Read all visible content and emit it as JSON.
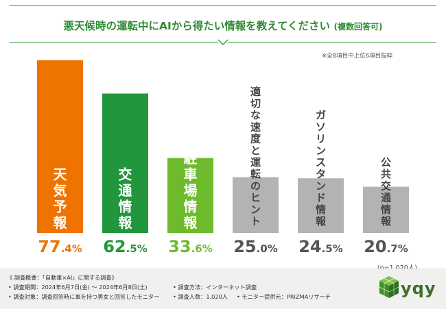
{
  "title": {
    "main": "悪天候時の運転中にAIから得たい情報を教えてください",
    "sub": "(複数回答可)"
  },
  "note": "※全8項目中上位6項目抜粋",
  "n_label": "(n=1,020人)",
  "colors": {
    "orange": "#ee7300",
    "dark_green": "#22963c",
    "light_green": "#6dbb2d",
    "gray": "#b3b3b3",
    "accent_green": "#2e8b32"
  },
  "chart_data": {
    "type": "bar",
    "title": "悪天候時の運転中にAIから得たい情報を教えてください (複数回答可)",
    "categories": [
      "天気予報",
      "交通情報",
      "駐車場情報",
      "適切な速度と運転のヒント",
      "ガソリンスタンド情報",
      "公共交通情報"
    ],
    "values": [
      77.4,
      62.5,
      33.6,
      25.0,
      24.5,
      20.7
    ],
    "value_labels": [
      {
        "int": "77",
        "dec": ".4%"
      },
      {
        "int": "62",
        "dec": ".5%"
      },
      {
        "int": "33",
        "dec": ".6%"
      },
      {
        "int": "25",
        "dec": ".0%"
      },
      {
        "int": "24",
        "dec": ".5%"
      },
      {
        "int": "20",
        "dec": ".7%"
      }
    ],
    "bar_colors": [
      "#ee7300",
      "#22963c",
      "#6dbb2d",
      "#b3b3b3",
      "#b3b3b3",
      "#b3b3b3"
    ],
    "label_inside": [
      true,
      true,
      true,
      false,
      false,
      false
    ],
    "ylim": [
      0,
      100
    ],
    "unit": "%",
    "xlabel": "",
    "ylabel": ""
  },
  "footer": {
    "summary": "《 調査概要：「自動車×AI」に関する調査》",
    "period": "• 調査期間：2024年6月7日(金) ～ 2024年6月8日(土)",
    "target": "• 調査対象：調査回答時に車を持つ男女と回答したモニター",
    "method": "• 調査方法：インターネット調査",
    "count": "• 調査人数：1,020人",
    "provider": "• モニター提供元：PRIZMAリサーチ"
  },
  "logo": {
    "text": "yqy"
  }
}
